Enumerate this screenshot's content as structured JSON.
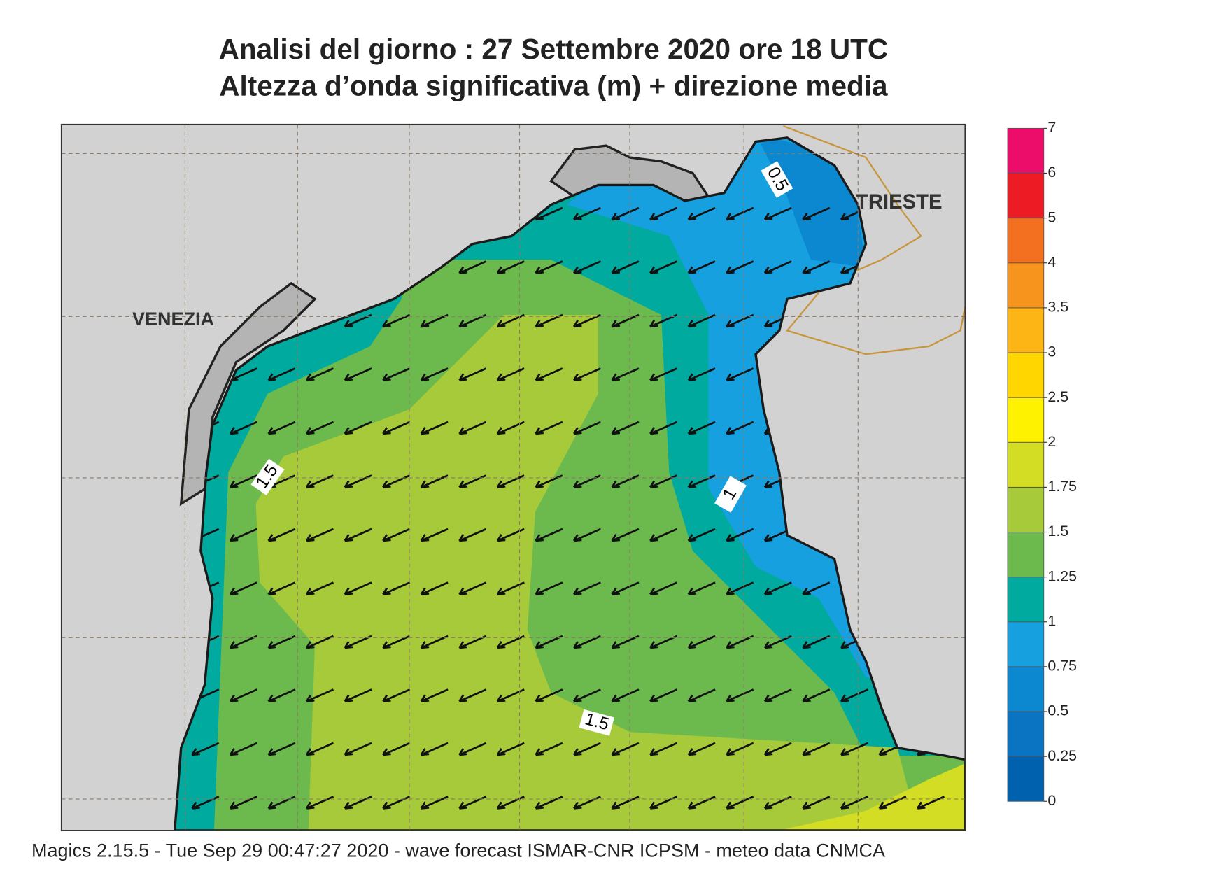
{
  "header": {
    "title": "Analisi del giorno :  27 Settembre 2020   ore 18 UTC",
    "subtitle": "Altezza d’onda significativa (m) + direzione media"
  },
  "map": {
    "places": [
      "VENEZIA",
      "TRIESTE"
    ],
    "contour_labels": [
      0.5,
      1,
      1.5,
      1.5
    ]
  },
  "colorbar": {
    "ticks": [
      0,
      0.25,
      0.5,
      0.75,
      1,
      1.25,
      1.5,
      1.75,
      2,
      2.5,
      3,
      3.5,
      4,
      5,
      6,
      7
    ],
    "colors": [
      "#0061ae",
      "#0a74c2",
      "#0b88d0",
      "#16a0e0",
      "#00aa9e",
      "#6cba4e",
      "#a7ca3b",
      "#d3dd23",
      "#fff200",
      "#ffd600",
      "#fdb515",
      "#f7941d",
      "#f37021",
      "#ed1c24",
      "#ec0c6a"
    ]
  },
  "footer": "Magics 2.15.5 - Tue Sep 29 00:47:27 2020 - wave forecast  ISMAR-CNR  ICPSM - meteo data   CNMCA"
}
